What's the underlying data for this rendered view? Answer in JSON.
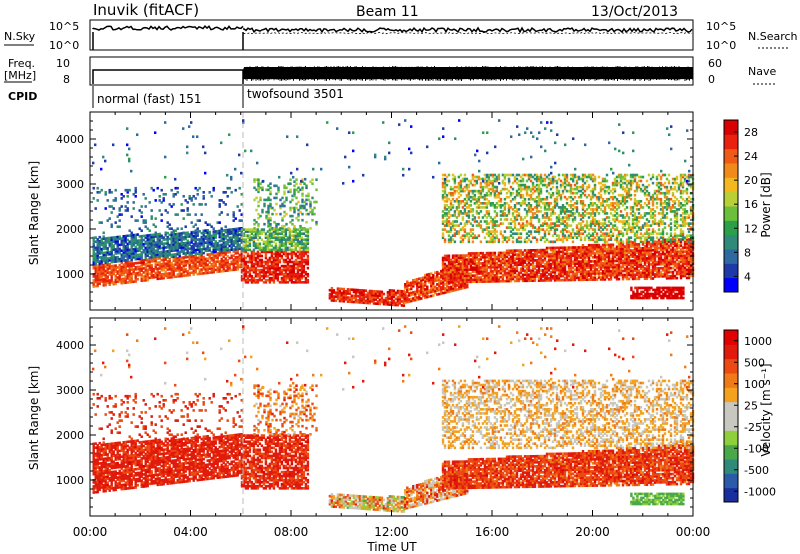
{
  "header": {
    "station": "Inuvik (fitACF)",
    "beam": "Beam 11",
    "date": "13/Oct/2013"
  },
  "strip_labels": {
    "nsky": "N.Sky",
    "nsky_ticks": [
      "10^5",
      "10^0"
    ],
    "nsearch": "N.Search",
    "freq": "Freq.",
    "freq_unit": "[MHz]",
    "freq_ticks": [
      "10",
      "8"
    ],
    "nave": "Nave",
    "nave_ticks": [
      "60",
      "0"
    ],
    "cpid": "CPID",
    "cpid_modes": [
      "normal (fast) 151",
      "twofsound 3501"
    ]
  },
  "chart_data": [
    {
      "type": "heatmap",
      "name": "power",
      "ylabel": "Slant Range [km]",
      "yticks": [
        1000,
        2000,
        3000,
        4000
      ],
      "ylim": [
        200,
        4600
      ],
      "xlim": [
        0,
        24
      ],
      "colorbar": {
        "label": "Power [dB]",
        "ticks": [
          "28",
          "24",
          "20",
          "16",
          "12",
          "8",
          "4"
        ],
        "colors": [
          "#0000ff",
          "#1e3aa8",
          "#2e6aa0",
          "#2f8a7a",
          "#2aa048",
          "#6cbf3a",
          "#b8d035",
          "#f2b81e",
          "#f08a1a",
          "#f05a14",
          "#e8220e",
          "#d80000"
        ]
      }
    },
    {
      "type": "heatmap",
      "name": "velocity",
      "ylabel": "Slant Range [km]",
      "yticks": [
        1000,
        2000,
        3000,
        4000
      ],
      "ylim": [
        200,
        4600
      ],
      "xlim": [
        0,
        24
      ],
      "xticks": [
        "00:00",
        "04:00",
        "08:00",
        "12:00",
        "16:00",
        "20:00",
        "00:00"
      ],
      "xlabel": "Time UT",
      "colorbar": {
        "label": "Velocity [m s⁻¹]",
        "ticks": [
          "1000",
          "500",
          "100",
          "25",
          "-25",
          "-100",
          "-500",
          "-1000"
        ],
        "colors": [
          "#1a2f9e",
          "#2a5aa8",
          "#2f8a7a",
          "#4aa84a",
          "#8fcf3c",
          "#c8c8c0",
          "#c8c8c0",
          "#f4a21e",
          "#f07a18",
          "#ec4a12",
          "#e01a0c",
          "#e00000"
        ]
      }
    }
  ]
}
